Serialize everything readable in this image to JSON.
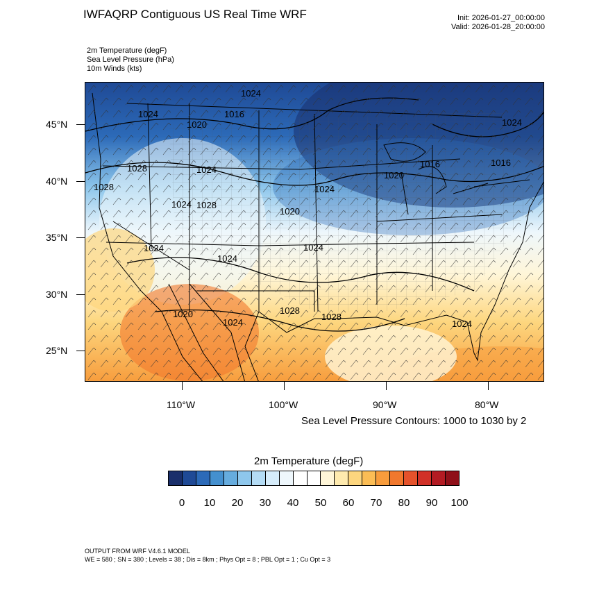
{
  "header": {
    "title": "IWFAQRP Contiguous US Real Time WRF",
    "init": "Init: 2026-01-27_00:00:00",
    "valid": "Valid: 2026-01-28_20:00:00"
  },
  "variables": [
    "2m Temperature   (degF)",
    "Sea Level Pressure   (hPa)",
    "10m Winds   (kts)"
  ],
  "map": {
    "lat_labels": [
      "45°N",
      "40°N",
      "35°N",
      "30°N",
      "25°N"
    ],
    "lon_labels": [
      "110°W",
      "100°W",
      "90°W",
      "80°W"
    ],
    "pressure_labels": [
      "1024",
      "1024",
      "1016",
      "1020",
      "1028",
      "1024",
      "1028",
      "1024",
      "1020",
      "1016",
      "1024",
      "1028",
      "1024",
      "1020",
      "1024",
      "1024",
      "1024",
      "1020",
      "1024",
      "1028",
      "1028",
      "1024",
      "1016"
    ],
    "contour_note": "Sea Level Pressure Contours: 1000 to 1030 by 2"
  },
  "colorbar": {
    "title": "2m Temperature  (degF)",
    "colors": [
      "#1a2f6b",
      "#1f4a96",
      "#2c6ab8",
      "#4490cf",
      "#66acde",
      "#8ec7ec",
      "#b4dcf5",
      "#d6ecfa",
      "#eef7fc",
      "#ffffff",
      "#ffffff",
      "#fff6d8",
      "#feeaae",
      "#fdd67e",
      "#fbbd55",
      "#f79c3c",
      "#f1782d",
      "#e5522b",
      "#d13128",
      "#b31b23",
      "#8f1019"
    ],
    "tick_labels": [
      "0",
      "10",
      "20",
      "30",
      "40",
      "50",
      "60",
      "70",
      "80",
      "90",
      "100"
    ]
  },
  "footer": {
    "line1": "OUTPUT FROM WRF V4.6.1 MODEL",
    "line2": "WE = 580 ; SN = 380 ; Levels = 38 ; Dis = 8km ; Phys Opt = 8 ; PBL Opt = 1 ; Cu Opt = 3"
  }
}
